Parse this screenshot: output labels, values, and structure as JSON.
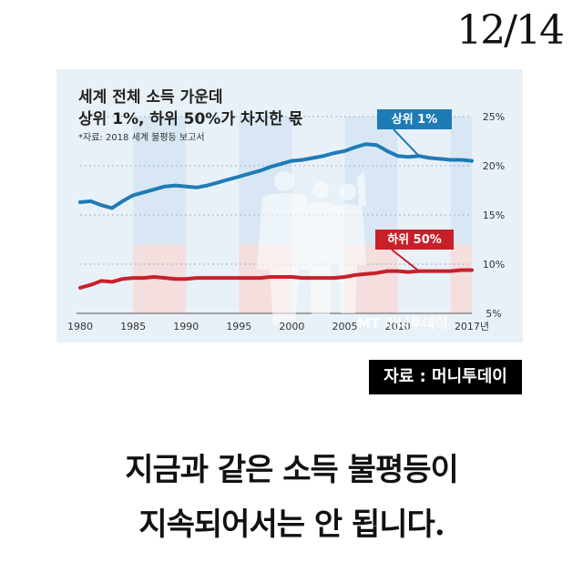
{
  "page_counter": "12/14",
  "chart_data": {
    "type": "line",
    "title": "세계 전체 소득 가운데",
    "subtitle": "상위 1%, 하위 50%가 차지한 몫",
    "source_note": "*자료: 2018 세계 불평등 보고서",
    "x": [
      1980,
      1981,
      1982,
      1983,
      1984,
      1985,
      1986,
      1987,
      1988,
      1989,
      1990,
      1991,
      1992,
      1993,
      1994,
      1995,
      1996,
      1997,
      1998,
      1999,
      2000,
      2001,
      2002,
      2003,
      2004,
      2005,
      2006,
      2007,
      2008,
      2009,
      2010,
      2011,
      2012,
      2013,
      2014,
      2015,
      2016,
      2017
    ],
    "x_ticks": [
      1980,
      1985,
      1990,
      1995,
      2000,
      2005,
      2010,
      2017
    ],
    "x_tick_labels": [
      "1980",
      "1985",
      "1990",
      "1995",
      "2000",
      "2005",
      "2010",
      "2017년"
    ],
    "y_ticks": [
      5,
      10,
      15,
      20,
      25
    ],
    "y_tick_labels": [
      "5%",
      "10%",
      "15%",
      "20%",
      "25%"
    ],
    "ylim": [
      5,
      25
    ],
    "grid": "horizontal-dashed",
    "series": [
      {
        "name": "상위 1%",
        "color": "#1f7bb6",
        "values": [
          16.3,
          16.4,
          16.0,
          15.7,
          16.4,
          17.0,
          17.3,
          17.6,
          17.9,
          18.0,
          17.9,
          17.8,
          18.0,
          18.3,
          18.6,
          18.9,
          19.2,
          19.5,
          19.9,
          20.2,
          20.5,
          20.6,
          20.8,
          21.0,
          21.3,
          21.5,
          21.9,
          22.2,
          22.1,
          21.5,
          21.0,
          20.9,
          21.0,
          20.8,
          20.7,
          20.6,
          20.6,
          20.5
        ]
      },
      {
        "name": "하위 50%",
        "color": "#c8202a",
        "values": [
          7.6,
          7.9,
          8.3,
          8.2,
          8.5,
          8.6,
          8.6,
          8.7,
          8.6,
          8.5,
          8.5,
          8.6,
          8.6,
          8.6,
          8.6,
          8.6,
          8.6,
          8.6,
          8.7,
          8.7,
          8.7,
          8.6,
          8.6,
          8.6,
          8.6,
          8.7,
          8.9,
          9.0,
          9.1,
          9.3,
          9.3,
          9.2,
          9.3,
          9.3,
          9.3,
          9.3,
          9.4,
          9.4
        ]
      }
    ]
  },
  "watermark": "MT 머니투데이",
  "source_badge": "자료 : 머니투데이",
  "caption": {
    "line1": "지금과 같은 소득 불평등이",
    "line2": "지속되어서는 안 됩니다."
  }
}
